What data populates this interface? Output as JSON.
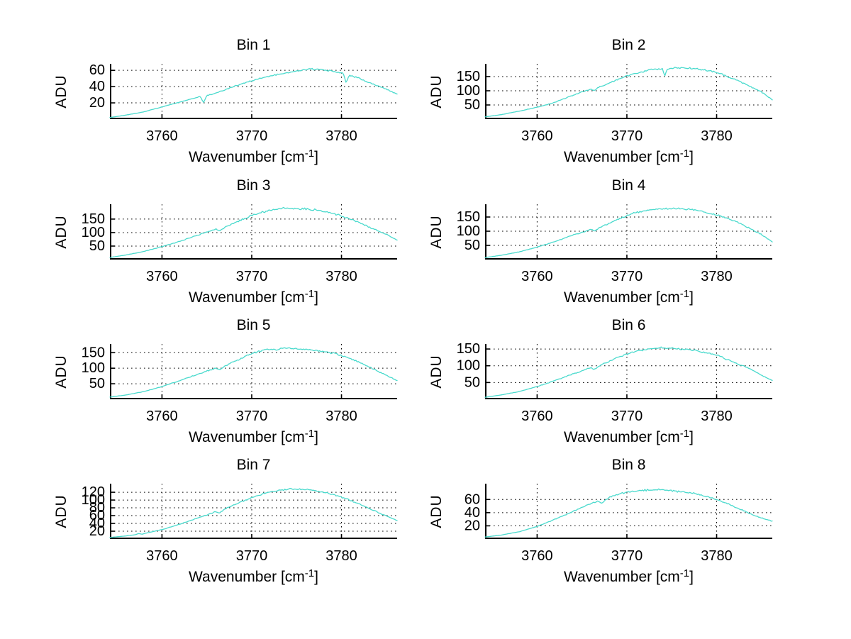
{
  "figure": {
    "background": "#ffffff",
    "line_color": "#4adacd",
    "axis_color": "#000000",
    "ylabel": "ADU",
    "xlabel": {
      "prefix": "Wavenumber [cm",
      "sup": "-1",
      "suffix": "]",
      "text": "Wavenumber [cm^-1]"
    }
  },
  "chart_data": [
    {
      "type": "line",
      "title": "Bin 1",
      "xlabel": "Wavenumber [cm^-1]",
      "ylabel": "ADU",
      "xlim": [
        3754.2,
        3786.2
      ],
      "ylim": [
        0,
        68
      ],
      "xticks": [
        3760,
        3770,
        3780
      ],
      "yticks": [
        20,
        40,
        60
      ],
      "grid": true,
      "legend": false,
      "noise": 1.2,
      "points": [
        [
          3754.2,
          2
        ],
        [
          3756,
          5
        ],
        [
          3758,
          9
        ],
        [
          3760,
          15
        ],
        [
          3762,
          21
        ],
        [
          3764,
          27
        ],
        [
          3764.3,
          28
        ],
        [
          3764.6,
          20
        ],
        [
          3765,
          29
        ],
        [
          3766,
          32
        ],
        [
          3767,
          36
        ],
        [
          3768,
          40
        ],
        [
          3769,
          44
        ],
        [
          3770,
          47
        ],
        [
          3771,
          50
        ],
        [
          3772,
          53
        ],
        [
          3773,
          55
        ],
        [
          3774,
          57
        ],
        [
          3775,
          59
        ],
        [
          3776,
          61
        ],
        [
          3776.5,
          62
        ],
        [
          3777,
          61
        ],
        [
          3778,
          61
        ],
        [
          3779,
          59
        ],
        [
          3780,
          57
        ],
        [
          3780.2,
          56
        ],
        [
          3780.5,
          45
        ],
        [
          3780.9,
          54
        ],
        [
          3781.5,
          52
        ],
        [
          3782,
          50
        ],
        [
          3783,
          45
        ],
        [
          3784,
          41
        ],
        [
          3785,
          37
        ],
        [
          3786.2,
          31
        ]
      ]
    },
    {
      "type": "line",
      "title": "Bin 2",
      "xlabel": "Wavenumber [cm^-1]",
      "ylabel": "ADU",
      "xlim": [
        3754.2,
        3786.2
      ],
      "ylim": [
        0,
        195
      ],
      "xticks": [
        3760,
        3770,
        3780
      ],
      "yticks": [
        50,
        100,
        150
      ],
      "grid": true,
      "legend": false,
      "noise": 4,
      "points": [
        [
          3754.2,
          8
        ],
        [
          3756,
          16
        ],
        [
          3758,
          28
        ],
        [
          3760,
          42
        ],
        [
          3761,
          50
        ],
        [
          3762,
          60
        ],
        [
          3763,
          72
        ],
        [
          3764,
          84
        ],
        [
          3765,
          96
        ],
        [
          3766,
          106
        ],
        [
          3766.4,
          100
        ],
        [
          3766.8,
          112
        ],
        [
          3768,
          126
        ],
        [
          3769,
          140
        ],
        [
          3770,
          152
        ],
        [
          3771,
          162
        ],
        [
          3772,
          170
        ],
        [
          3773,
          176
        ],
        [
          3774,
          179
        ],
        [
          3774.2,
          150
        ],
        [
          3774.5,
          177
        ],
        [
          3775,
          180
        ],
        [
          3776,
          181
        ],
        [
          3777,
          179
        ],
        [
          3778,
          176
        ],
        [
          3779,
          171
        ],
        [
          3780,
          164
        ],
        [
          3780.5,
          160
        ],
        [
          3781,
          152
        ],
        [
          3782,
          141
        ],
        [
          3783,
          127
        ],
        [
          3784,
          111
        ],
        [
          3785,
          96
        ],
        [
          3786.2,
          68
        ]
      ]
    },
    {
      "type": "line",
      "title": "Bin 3",
      "xlabel": "Wavenumber [cm^-1]",
      "ylabel": "ADU",
      "xlim": [
        3754.2,
        3786.2
      ],
      "ylim": [
        0,
        205
      ],
      "xticks": [
        3760,
        3770,
        3780
      ],
      "yticks": [
        50,
        100,
        150
      ],
      "grid": true,
      "legend": false,
      "noise": 5,
      "points": [
        [
          3754.2,
          8
        ],
        [
          3756,
          17
        ],
        [
          3758,
          30
        ],
        [
          3760,
          48
        ],
        [
          3762,
          68
        ],
        [
          3764,
          90
        ],
        [
          3765,
          102
        ],
        [
          3766,
          112
        ],
        [
          3766.4,
          106
        ],
        [
          3767,
          120
        ],
        [
          3768,
          134
        ],
        [
          3769,
          150
        ],
        [
          3770,
          163
        ],
        [
          3771,
          174
        ],
        [
          3772,
          182
        ],
        [
          3773,
          188
        ],
        [
          3774,
          191
        ],
        [
          3775,
          188
        ],
        [
          3776,
          187
        ],
        [
          3777,
          184
        ],
        [
          3778,
          179
        ],
        [
          3779,
          171
        ],
        [
          3779.6,
          166
        ],
        [
          3780,
          161
        ],
        [
          3781,
          150
        ],
        [
          3782,
          137
        ],
        [
          3783,
          122
        ],
        [
          3784,
          107
        ],
        [
          3785,
          93
        ],
        [
          3786.2,
          72
        ]
      ]
    },
    {
      "type": "line",
      "title": "Bin 4",
      "xlabel": "Wavenumber [cm^-1]",
      "ylabel": "ADU",
      "xlim": [
        3754.2,
        3786.2
      ],
      "ylim": [
        0,
        195
      ],
      "xticks": [
        3760,
        3770,
        3780
      ],
      "yticks": [
        50,
        100,
        150
      ],
      "grid": true,
      "legend": false,
      "noise": 4,
      "points": [
        [
          3754.2,
          7
        ],
        [
          3756,
          15
        ],
        [
          3758,
          27
        ],
        [
          3760,
          44
        ],
        [
          3762,
          64
        ],
        [
          3764,
          86
        ],
        [
          3766,
          106
        ],
        [
          3766.4,
          100
        ],
        [
          3767,
          114
        ],
        [
          3768,
          128
        ],
        [
          3769,
          142
        ],
        [
          3770,
          155
        ],
        [
          3771,
          166
        ],
        [
          3772,
          172
        ],
        [
          3773,
          176
        ],
        [
          3774,
          179
        ],
        [
          3775,
          180
        ],
        [
          3776,
          179
        ],
        [
          3777,
          177
        ],
        [
          3778,
          172
        ],
        [
          3778.6,
          168
        ],
        [
          3779,
          164
        ],
        [
          3780,
          158
        ],
        [
          3781,
          148
        ],
        [
          3782,
          136
        ],
        [
          3783,
          121
        ],
        [
          3784,
          105
        ],
        [
          3785,
          88
        ],
        [
          3786.2,
          62
        ]
      ]
    },
    {
      "type": "line",
      "title": "Bin 5",
      "xlabel": "Wavenumber [cm^-1]",
      "ylabel": "ADU",
      "xlim": [
        3754.2,
        3786.2
      ],
      "ylim": [
        0,
        178
      ],
      "xticks": [
        3760,
        3770,
        3780
      ],
      "yticks": [
        50,
        100,
        150
      ],
      "grid": true,
      "legend": false,
      "noise": 4,
      "points": [
        [
          3754.2,
          7
        ],
        [
          3756,
          14
        ],
        [
          3758,
          25
        ],
        [
          3760,
          41
        ],
        [
          3762,
          60
        ],
        [
          3764,
          81
        ],
        [
          3766,
          100
        ],
        [
          3766.4,
          95
        ],
        [
          3767,
          108
        ],
        [
          3768,
          121
        ],
        [
          3769,
          134
        ],
        [
          3770,
          146
        ],
        [
          3770.5,
          152
        ],
        [
          3771,
          157
        ],
        [
          3772,
          160
        ],
        [
          3773,
          162
        ],
        [
          3774,
          164
        ],
        [
          3775,
          162
        ],
        [
          3776,
          160
        ],
        [
          3777,
          158
        ],
        [
          3778,
          154
        ],
        [
          3779,
          148
        ],
        [
          3780,
          141
        ],
        [
          3781,
          131
        ],
        [
          3782,
          119
        ],
        [
          3783,
          105
        ],
        [
          3784,
          91
        ],
        [
          3785,
          77
        ],
        [
          3786.2,
          61
        ]
      ]
    },
    {
      "type": "line",
      "title": "Bin 6",
      "xlabel": "Wavenumber [cm^-1]",
      "ylabel": "ADU",
      "xlim": [
        3754.2,
        3786.2
      ],
      "ylim": [
        0,
        165
      ],
      "xticks": [
        3760,
        3770,
        3780
      ],
      "yticks": [
        50,
        100,
        150
      ],
      "grid": true,
      "legend": false,
      "noise": 3.5,
      "points": [
        [
          3754.2,
          6
        ],
        [
          3756,
          13
        ],
        [
          3758,
          23
        ],
        [
          3760,
          38
        ],
        [
          3762,
          56
        ],
        [
          3764,
          76
        ],
        [
          3766,
          94
        ],
        [
          3766.4,
          89
        ],
        [
          3767,
          101
        ],
        [
          3768,
          113
        ],
        [
          3769,
          125
        ],
        [
          3770,
          135
        ],
        [
          3771,
          143
        ],
        [
          3772,
          148
        ],
        [
          3773,
          152
        ],
        [
          3774,
          154
        ],
        [
          3775,
          152
        ],
        [
          3776,
          150
        ],
        [
          3777,
          148
        ],
        [
          3778,
          144
        ],
        [
          3779,
          138
        ],
        [
          3780,
          131
        ],
        [
          3780.6,
          127
        ],
        [
          3781,
          120
        ],
        [
          3782,
          110
        ],
        [
          3782.4,
          103
        ],
        [
          3783,
          100
        ],
        [
          3784,
          86
        ],
        [
          3785,
          72
        ],
        [
          3786.2,
          56
        ]
      ]
    },
    {
      "type": "line",
      "title": "Bin 7",
      "xlabel": "Wavenumber [cm^-1]",
      "ylabel": "ADU",
      "xlim": [
        3754.2,
        3786.2
      ],
      "ylim": [
        0,
        142
      ],
      "xticks": [
        3760,
        3770,
        3780
      ],
      "yticks": [
        20,
        40,
        60,
        80,
        100,
        120
      ],
      "grid": true,
      "legend": false,
      "noise": 2.5,
      "points": [
        [
          3754.2,
          4
        ],
        [
          3756,
          8
        ],
        [
          3757,
          11
        ],
        [
          3757.4,
          14
        ],
        [
          3757.8,
          12
        ],
        [
          3758,
          14
        ],
        [
          3760,
          24
        ],
        [
          3762,
          38
        ],
        [
          3764,
          54
        ],
        [
          3766,
          70
        ],
        [
          3766.4,
          66
        ],
        [
          3767,
          77
        ],
        [
          3768,
          87
        ],
        [
          3769,
          97
        ],
        [
          3770,
          106
        ],
        [
          3771,
          114
        ],
        [
          3772,
          120
        ],
        [
          3773,
          125
        ],
        [
          3774,
          128
        ],
        [
          3775,
          128
        ],
        [
          3776,
          127
        ],
        [
          3777,
          124
        ],
        [
          3778,
          120
        ],
        [
          3779,
          114
        ],
        [
          3780,
          107
        ],
        [
          3781,
          99
        ],
        [
          3782,
          90
        ],
        [
          3783,
          79
        ],
        [
          3784,
          69
        ],
        [
          3785,
          59
        ],
        [
          3786.2,
          47
        ]
      ]
    },
    {
      "type": "line",
      "title": "Bin 8",
      "xlabel": "Wavenumber [cm^-1]",
      "ylabel": "ADU",
      "xlim": [
        3754.2,
        3786.2
      ],
      "ylim": [
        0,
        84
      ],
      "xticks": [
        3760,
        3770,
        3780
      ],
      "yticks": [
        20,
        40,
        60
      ],
      "grid": true,
      "legend": false,
      "noise": 1.5,
      "points": [
        [
          3754.2,
          3
        ],
        [
          3756,
          6
        ],
        [
          3758,
          11
        ],
        [
          3760,
          19
        ],
        [
          3762,
          30
        ],
        [
          3764,
          42
        ],
        [
          3766,
          54
        ],
        [
          3766.8,
          58
        ],
        [
          3767.2,
          54
        ],
        [
          3768,
          63
        ],
        [
          3769,
          68
        ],
        [
          3770,
          71
        ],
        [
          3771,
          73
        ],
        [
          3772,
          74
        ],
        [
          3773,
          75
        ],
        [
          3774,
          75
        ],
        [
          3775,
          73
        ],
        [
          3776,
          72
        ],
        [
          3777,
          70
        ],
        [
          3778,
          68
        ],
        [
          3779,
          64
        ],
        [
          3780,
          60
        ],
        [
          3781,
          55
        ],
        [
          3782,
          49
        ],
        [
          3783,
          43
        ],
        [
          3784,
          37
        ],
        [
          3785,
          32
        ],
        [
          3786.2,
          27
        ]
      ]
    }
  ]
}
